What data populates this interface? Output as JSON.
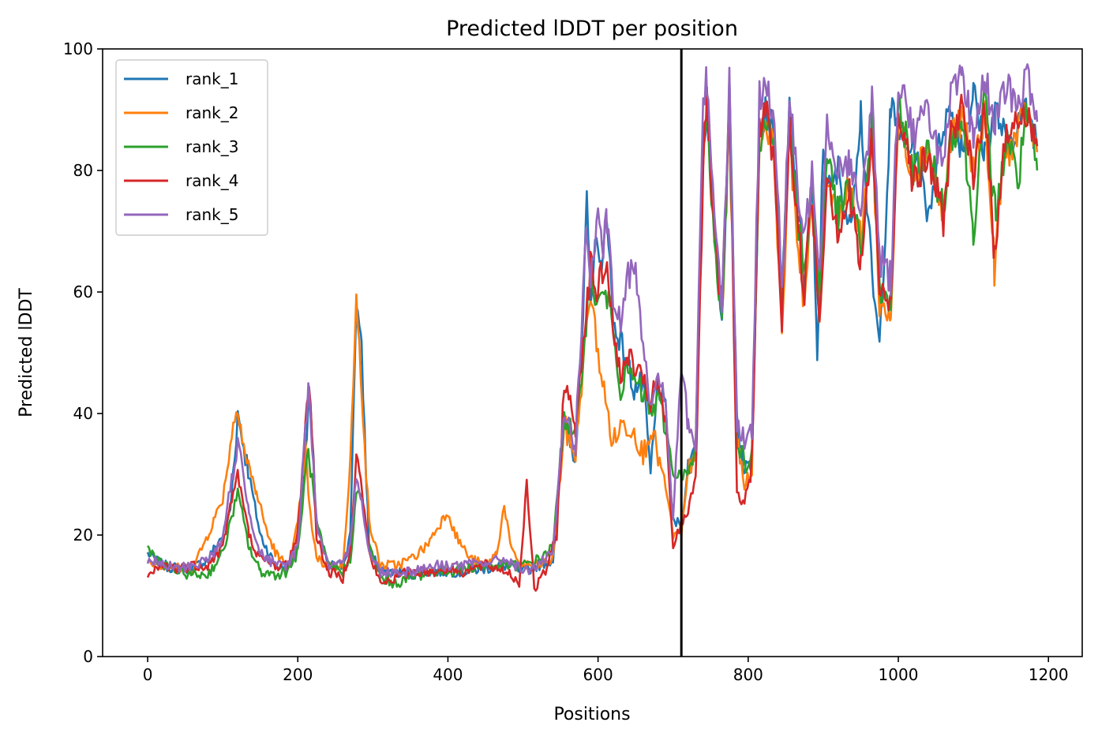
{
  "chart_data": {
    "type": "line",
    "title": "Predicted lDDT per position",
    "xlabel": "Positions",
    "ylabel": "Predicted lDDT",
    "xlim": [
      -60,
      1245
    ],
    "ylim": [
      0,
      100
    ],
    "xticks": [
      0,
      200,
      400,
      600,
      800,
      1000,
      1200
    ],
    "yticks": [
      0,
      20,
      40,
      60,
      80,
      100
    ],
    "grid": false,
    "legend_position": "upper-left",
    "vline_x": 711,
    "series": [
      {
        "name": "rank_1",
        "color": "#1f77b4",
        "x": [
          0,
          20,
          40,
          60,
          80,
          100,
          110,
          120,
          135,
          150,
          170,
          185,
          200,
          210,
          215,
          225,
          240,
          260,
          270,
          278,
          285,
          295,
          310,
          330,
          350,
          380,
          400,
          420,
          450,
          480,
          500,
          520,
          540,
          555,
          570,
          580,
          585,
          590,
          600,
          605,
          612,
          620,
          630,
          640,
          648,
          660,
          670,
          680,
          690,
          700,
          711,
          720,
          730,
          740,
          745,
          755,
          765,
          775,
          785,
          795,
          805,
          815,
          825,
          835,
          845,
          855,
          865,
          875,
          885,
          892,
          900,
          910,
          920,
          935,
          950,
          965,
          975,
          990,
          1000,
          1010,
          1020,
          1040,
          1060,
          1070,
          1085,
          1100,
          1115,
          1130,
          1145,
          1160,
          1170,
          1185
        ],
        "y": [
          17,
          15,
          14.5,
          14.5,
          16,
          20,
          24,
          40,
          30,
          20,
          15,
          14.5,
          18,
          32,
          44,
          22,
          15,
          15,
          20,
          59,
          50,
          18,
          14,
          14,
          13.5,
          14,
          14,
          14,
          14.5,
          15,
          14,
          15,
          16,
          40,
          33,
          55,
          74,
          60,
          70,
          62,
          74,
          55,
          52,
          48,
          44,
          45,
          30,
          45,
          40,
          22,
          22,
          31,
          35,
          85,
          90,
          70,
          55,
          93,
          40,
          30,
          33,
          88,
          90,
          85,
          57,
          90,
          75,
          62,
          78,
          48,
          84,
          76,
          80,
          70,
          90,
          62,
          51,
          90,
          87,
          83,
          85,
          73,
          88,
          90,
          84,
          93,
          83,
          90,
          84,
          88,
          90,
          85
        ]
      },
      {
        "name": "rank_2",
        "color": "#ff7f0e",
        "x": [
          0,
          20,
          40,
          60,
          80,
          100,
          110,
          120,
          130,
          145,
          160,
          175,
          190,
          200,
          210,
          215,
          225,
          240,
          260,
          270,
          278,
          285,
          295,
          310,
          330,
          350,
          370,
          390,
          400,
          410,
          430,
          450,
          465,
          475,
          485,
          500,
          520,
          540,
          555,
          570,
          580,
          590,
          600,
          610,
          620,
          630,
          640,
          650,
          660,
          670,
          680,
          690,
          700,
          711,
          720,
          730,
          740,
          745,
          755,
          765,
          775,
          785,
          795,
          805,
          815,
          825,
          835,
          845,
          855,
          865,
          875,
          885,
          895,
          905,
          920,
          935,
          950,
          965,
          975,
          990,
          1000,
          1010,
          1020,
          1040,
          1060,
          1070,
          1085,
          1100,
          1115,
          1128,
          1140,
          1160,
          1170,
          1185
        ],
        "y": [
          16,
          15,
          14.5,
          14.5,
          20,
          26,
          35,
          42,
          33,
          27,
          20,
          16,
          15,
          22,
          34,
          25,
          16,
          15,
          15,
          32,
          58,
          45,
          22,
          15,
          15,
          16,
          18,
          22,
          24,
          20,
          16,
          15,
          17,
          25,
          17,
          15,
          15,
          16,
          38,
          33,
          48,
          60,
          50,
          42,
          35,
          38,
          38,
          37,
          33,
          38,
          33,
          28,
          20,
          20,
          30,
          35,
          82,
          92,
          70,
          56,
          88,
          35,
          28,
          32,
          86,
          88,
          82,
          53,
          86,
          70,
          58,
          75,
          55,
          80,
          72,
          78,
          68,
          86,
          58,
          56,
          88,
          84,
          80,
          84,
          72,
          86,
          88,
          80,
          90,
          64,
          82,
          86,
          90,
          83
        ]
      },
      {
        "name": "rank_3",
        "color": "#2ca02c",
        "x": [
          0,
          20,
          40,
          60,
          80,
          100,
          110,
          120,
          135,
          150,
          170,
          185,
          200,
          210,
          215,
          225,
          240,
          260,
          270,
          278,
          285,
          295,
          310,
          330,
          350,
          380,
          400,
          420,
          450,
          480,
          500,
          520,
          540,
          555,
          570,
          580,
          590,
          600,
          610,
          620,
          630,
          640,
          650,
          660,
          670,
          680,
          690,
          700,
          711,
          720,
          730,
          740,
          745,
          755,
          765,
          775,
          785,
          795,
          805,
          815,
          825,
          835,
          845,
          855,
          865,
          875,
          885,
          895,
          905,
          920,
          935,
          950,
          965,
          975,
          990,
          1000,
          1010,
          1020,
          1040,
          1060,
          1070,
          1085,
          1100,
          1115,
          1130,
          1145,
          1160,
          1170,
          1185
        ],
        "y": [
          18,
          15,
          14,
          13.5,
          13.5,
          17,
          22,
          27,
          18,
          14,
          13.5,
          14,
          17,
          30,
          34,
          22,
          15,
          14,
          16,
          27,
          26,
          18,
          13,
          12,
          13,
          14,
          14,
          14.5,
          15,
          15,
          15,
          16,
          18,
          40,
          35,
          50,
          62,
          58,
          60,
          55,
          44,
          47,
          45,
          43,
          40,
          42,
          38,
          30,
          30,
          30,
          33,
          86,
          88,
          70,
          55,
          90,
          36,
          32,
          34,
          85,
          88,
          84,
          58,
          88,
          72,
          64,
          78,
          60,
          83,
          72,
          78,
          66,
          88,
          60,
          58,
          90,
          86,
          80,
          83,
          74,
          86,
          88,
          70,
          92,
          72,
          86,
          78,
          90,
          80
        ]
      },
      {
        "name": "rank_4",
        "color": "#d62728",
        "x": [
          0,
          20,
          40,
          60,
          80,
          100,
          110,
          120,
          135,
          150,
          170,
          185,
          200,
          210,
          215,
          225,
          240,
          260,
          270,
          278,
          285,
          295,
          310,
          330,
          350,
          380,
          400,
          420,
          450,
          480,
          495,
          505,
          515,
          530,
          545,
          555,
          570,
          580,
          590,
          600,
          610,
          620,
          630,
          640,
          650,
          660,
          670,
          680,
          690,
          700,
          711,
          720,
          730,
          740,
          745,
          755,
          765,
          775,
          785,
          795,
          805,
          815,
          825,
          835,
          845,
          855,
          865,
          875,
          885,
          895,
          905,
          920,
          935,
          950,
          965,
          975,
          990,
          1000,
          1010,
          1020,
          1040,
          1060,
          1070,
          1085,
          1100,
          1115,
          1128,
          1140,
          1160,
          1170,
          1185
        ],
        "y": [
          13,
          15,
          14.5,
          15,
          15,
          18,
          25,
          30,
          20,
          16,
          15,
          15,
          20,
          38,
          46,
          20,
          14,
          13,
          18,
          33,
          28,
          17,
          12,
          13,
          14,
          14,
          14.5,
          14,
          15,
          14,
          12,
          29,
          11,
          14,
          20,
          45,
          38,
          52,
          64,
          60,
          65,
          55,
          45,
          50,
          47,
          45,
          42,
          45,
          38,
          18,
          22,
          24,
          30,
          80,
          92,
          68,
          57,
          90,
          27,
          25,
          32,
          86,
          90,
          80,
          55,
          88,
          72,
          60,
          76,
          55,
          80,
          70,
          76,
          64,
          86,
          60,
          58,
          90,
          86,
          78,
          82,
          72,
          86,
          90,
          78,
          92,
          65,
          85,
          88,
          90,
          84
        ]
      },
      {
        "name": "rank_5",
        "color": "#9467bd",
        "x": [
          0,
          20,
          40,
          60,
          80,
          100,
          110,
          120,
          135,
          150,
          170,
          185,
          200,
          210,
          215,
          225,
          240,
          260,
          270,
          278,
          285,
          295,
          310,
          330,
          350,
          380,
          400,
          420,
          450,
          480,
          500,
          520,
          540,
          555,
          570,
          580,
          585,
          590,
          600,
          605,
          612,
          620,
          630,
          640,
          648,
          660,
          670,
          680,
          690,
          700,
          711,
          720,
          730,
          740,
          745,
          755,
          765,
          775,
          785,
          795,
          805,
          815,
          825,
          835,
          845,
          855,
          865,
          875,
          885,
          895,
          905,
          920,
          935,
          950,
          965,
          975,
          990,
          1000,
          1010,
          1020,
          1040,
          1060,
          1070,
          1085,
          1100,
          1115,
          1130,
          1145,
          1160,
          1170,
          1185
        ],
        "y": [
          16,
          15,
          14.5,
          15,
          16,
          19,
          28,
          35,
          24,
          17,
          15,
          15,
          18,
          38,
          45,
          22,
          15,
          15,
          18,
          30,
          26,
          17,
          14,
          14,
          14,
          15,
          15,
          15,
          15.5,
          16,
          14,
          15,
          17,
          40,
          35,
          60,
          70,
          62,
          72,
          66,
          72,
          58,
          55,
          62,
          66,
          52,
          42,
          45,
          42,
          22,
          48,
          38,
          35,
          92,
          95,
          74,
          58,
          95,
          38,
          36,
          36,
          92,
          95,
          88,
          60,
          92,
          78,
          68,
          80,
          65,
          88,
          80,
          82,
          72,
          92,
          66,
          62,
          95,
          92,
          86,
          90,
          80,
          92,
          95,
          86,
          95,
          88,
          94,
          90,
          96,
          88
        ]
      }
    ]
  }
}
